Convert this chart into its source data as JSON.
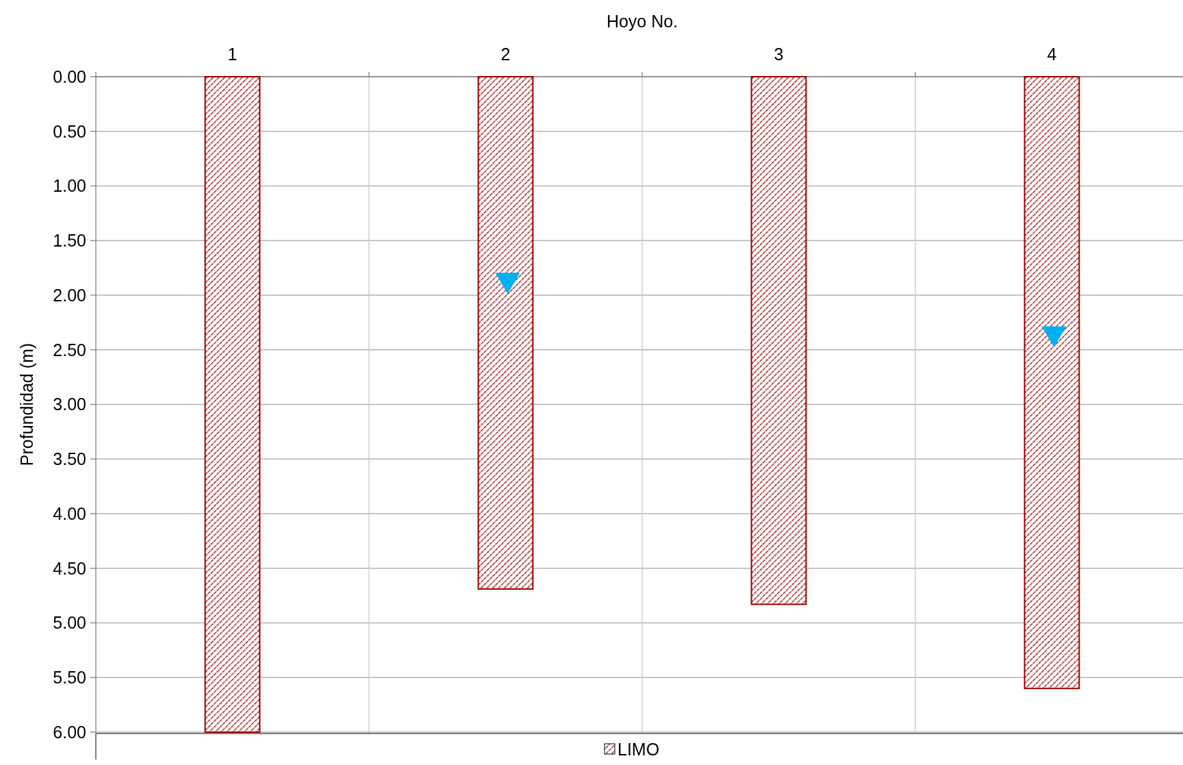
{
  "chart_data": {
    "type": "bar",
    "xlabel": "Hoyo No.",
    "ylabel": "Profundidad (m)",
    "categories": [
      "1",
      "2",
      "3",
      "4"
    ],
    "series": [
      {
        "name": "LIMO",
        "color": "#990000",
        "values": [
          6.0,
          4.69,
          4.83,
          5.6
        ]
      },
      {
        "type": "scatter",
        "color": "#00b0f0",
        "marker": "triangle",
        "x": [
          "2",
          "4"
        ],
        "values": [
          1.88,
          2.37
        ]
      }
    ],
    "ylim": [
      6,
      0
    ],
    "yticks": [
      {
        "value": 0,
        "label": "0.00"
      },
      {
        "value": 0.5,
        "label": "0.50"
      },
      {
        "value": 1,
        "label": "1.00"
      },
      {
        "value": 1.5,
        "label": "1.50"
      },
      {
        "value": 2,
        "label": "2.00"
      },
      {
        "value": 2.5,
        "label": "2.50"
      },
      {
        "value": 3,
        "label": "3.00"
      },
      {
        "value": 3.5,
        "label": "3.50"
      },
      {
        "value": 4,
        "label": "4.00"
      },
      {
        "value": 4.5,
        "label": "4.50"
      },
      {
        "value": 5,
        "label": "5.00"
      },
      {
        "value": 5.5,
        "label": "5.50"
      },
      {
        "value": 6,
        "label": "6.00"
      }
    ],
    "grid": true,
    "legend": "bottom"
  }
}
